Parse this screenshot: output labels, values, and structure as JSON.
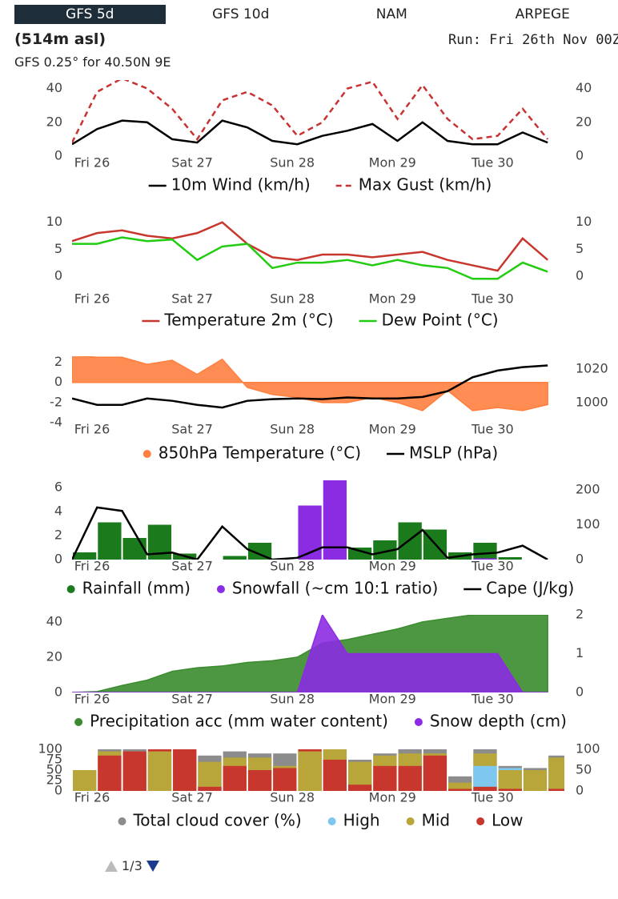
{
  "tabs": [
    "GFS 5d",
    "GFS 10d",
    "NAM",
    "ARPEGE"
  ],
  "selected_tab": 0,
  "header": {
    "elevation": "(514m asl)",
    "run": "Run: Fri 26th Nov 00Z",
    "model": "GFS 0.25° for 40.50N 9E"
  },
  "pager": {
    "label": "1/3"
  },
  "chart_data": [
    {
      "type": "line",
      "x": [
        0,
        6,
        12,
        18,
        24,
        30,
        36,
        42,
        48,
        54,
        60,
        66,
        72,
        78,
        84,
        90,
        96,
        102,
        108,
        114
      ],
      "xlim": [
        0,
        118
      ],
      "xticks": [
        {
          "value": 0,
          "label": "Fri 26"
        },
        {
          "value": 24,
          "label": "Sat 27"
        },
        {
          "value": 48,
          "label": "Sun 28"
        },
        {
          "value": 72,
          "label": "Mon 29"
        },
        {
          "value": 96,
          "label": "Tue 30"
        }
      ],
      "ylim": [
        0,
        45
      ],
      "yticks": [
        0,
        20,
        40
      ],
      "y2lim": [
        0,
        45
      ],
      "y2ticks": [
        0,
        20,
        40
      ],
      "series": [
        {
          "name": "10m Wind (km/h)",
          "color": "#000000",
          "values": [
            7,
            16,
            21,
            20,
            10,
            8,
            21,
            17,
            9,
            7,
            12,
            15,
            19,
            9,
            20,
            9,
            7,
            7,
            14,
            8
          ]
        },
        {
          "name": "Max Gust (km/h)",
          "color": "#c83232",
          "dashed": true,
          "values": [
            8,
            38,
            46,
            40,
            28,
            10,
            33,
            38,
            30,
            12,
            20,
            40,
            44,
            22,
            42,
            22,
            10,
            12,
            28,
            10
          ]
        }
      ]
    },
    {
      "type": "line",
      "x": [
        0,
        6,
        12,
        18,
        24,
        30,
        36,
        42,
        48,
        54,
        60,
        66,
        72,
        78,
        84,
        90,
        96,
        102,
        108,
        114
      ],
      "xlim": [
        0,
        118
      ],
      "xticks": [
        {
          "value": 0,
          "label": "Fri 26"
        },
        {
          "value": 24,
          "label": "Sat 27"
        },
        {
          "value": 48,
          "label": "Sun 28"
        },
        {
          "value": 72,
          "label": "Mon 29"
        },
        {
          "value": 96,
          "label": "Tue 30"
        }
      ],
      "ylim": [
        -3,
        11
      ],
      "yticks": [
        0,
        5,
        10
      ],
      "y2lim": [
        -3,
        11
      ],
      "y2ticks": [
        0,
        5,
        10
      ],
      "series": [
        {
          "name": "Temperature 2m (°C)",
          "color": "#c8372d",
          "values": [
            6.5,
            8,
            8.5,
            7.5,
            7,
            8,
            10,
            6,
            3.5,
            3,
            4,
            4,
            3.5,
            4,
            4.5,
            3,
            2,
            1,
            7,
            3
          ]
        },
        {
          "name": "Dew Point (°C)",
          "color": "#22cc11",
          "values": [
            6,
            6,
            7.2,
            6.5,
            6.8,
            3,
            5.5,
            6,
            1.5,
            2.5,
            2.5,
            3,
            2,
            3,
            2,
            1.5,
            -0.5,
            -0.5,
            2.5,
            0.8
          ]
        }
      ]
    },
    {
      "type": "combo",
      "x": [
        0,
        6,
        12,
        18,
        24,
        30,
        36,
        42,
        48,
        54,
        60,
        66,
        72,
        78,
        84,
        90,
        96,
        102,
        108,
        114
      ],
      "xlim": [
        0,
        118
      ],
      "xticks": [
        {
          "value": 0,
          "label": "Fri 26"
        },
        {
          "value": 24,
          "label": "Sat 27"
        },
        {
          "value": 48,
          "label": "Sun 28"
        },
        {
          "value": 72,
          "label": "Mon 29"
        },
        {
          "value": 96,
          "label": "Tue 30"
        }
      ],
      "ylim": [
        -4,
        2.6
      ],
      "yticks": [
        -4,
        -2,
        0,
        2
      ],
      "y2lim": [
        988,
        1027.5
      ],
      "y2ticks": [
        1000,
        1020
      ],
      "series": [
        {
          "name": "850hPa Temperature (°C)",
          "type": "area",
          "color": "#ff7f3f",
          "values": [
            2.7,
            2.5,
            2.5,
            1.8,
            2.2,
            0.8,
            2.3,
            -0.5,
            -1.2,
            -1.5,
            -2,
            -2,
            -1.5,
            -2,
            -2.8,
            -0.8,
            -2.8,
            -2.5,
            -2.8,
            -2.2
          ]
        },
        {
          "name": "MSLP (hPa)",
          "type": "line",
          "axis": "y2",
          "color": "#000000",
          "values": [
            1002.4,
            998.6,
            998.6,
            1002.4,
            1001,
            998.6,
            997,
            1001,
            1002,
            1002.4,
            1002,
            1003,
            1002.4,
            1002.4,
            1003.3,
            1006.7,
            1015,
            1019,
            1021,
            1022
          ]
        }
      ]
    },
    {
      "type": "combo",
      "x": [
        0,
        6,
        12,
        18,
        24,
        30,
        36,
        42,
        48,
        54,
        60,
        66,
        72,
        78,
        84,
        90,
        96,
        102,
        108,
        114
      ],
      "xlim": [
        0,
        118
      ],
      "xticks": [
        {
          "value": 0,
          "label": "Fri 26"
        },
        {
          "value": 24,
          "label": "Sat 27"
        },
        {
          "value": 48,
          "label": "Sun 28"
        },
        {
          "value": 72,
          "label": "Mon 29"
        },
        {
          "value": 96,
          "label": "Tue 30"
        }
      ],
      "ylim": [
        0,
        6.6
      ],
      "yticks": [
        0,
        2,
        4,
        6
      ],
      "y2lim": [
        0,
        228
      ],
      "y2ticks": [
        0,
        100,
        200
      ],
      "series": [
        {
          "name": "Rainfall (mm)",
          "type": "bar",
          "color": "#1b7a1b",
          "values": [
            0.6,
            3.1,
            1.8,
            2.9,
            0.5,
            0,
            0.3,
            1.4,
            0,
            0,
            0,
            1,
            1.6,
            3.1,
            2.5,
            0.6,
            1.4,
            0.2,
            0,
            0
          ]
        },
        {
          "name": "Snowfall (~cm 10:1 ratio)",
          "type": "bar",
          "color": "#8b2be2",
          "values": [
            0,
            0,
            0,
            0,
            0,
            0,
            0,
            0,
            0,
            4.5,
            6.8,
            0,
            0,
            0,
            0,
            0,
            0.1,
            0,
            0,
            0
          ]
        },
        {
          "name": "Cape (J/kg)",
          "type": "line",
          "axis": "y2",
          "color": "#000000",
          "values": [
            0,
            150,
            140,
            15,
            20,
            0,
            95,
            30,
            0,
            5,
            35,
            35,
            15,
            30,
            85,
            5,
            15,
            20,
            40,
            0
          ]
        }
      ]
    },
    {
      "type": "combo",
      "x": [
        0,
        6,
        12,
        18,
        24,
        30,
        36,
        42,
        48,
        54,
        60,
        66,
        72,
        78,
        84,
        90,
        96,
        102,
        108,
        114
      ],
      "xlim": [
        0,
        118
      ],
      "xticks": [
        {
          "value": 0,
          "label": "Fri 26"
        },
        {
          "value": 24,
          "label": "Sat 27"
        },
        {
          "value": 48,
          "label": "Sun 28"
        },
        {
          "value": 72,
          "label": "Mon 29"
        },
        {
          "value": 96,
          "label": "Tue 30"
        }
      ],
      "ylim": [
        0,
        44
      ],
      "yticks": [
        0,
        20,
        40
      ],
      "y2lim": [
        0,
        2
      ],
      "y2ticks": [
        0,
        1,
        2
      ],
      "series": [
        {
          "name": "Precipitation acc (mm water content)",
          "type": "area",
          "color": "#3b8c2e",
          "values": [
            0,
            0.5,
            4,
            7,
            12,
            14,
            15,
            17,
            18,
            20,
            28,
            30,
            33,
            36,
            40,
            42,
            44,
            44,
            44,
            44
          ]
        },
        {
          "name": "Snow depth (cm)",
          "type": "area",
          "axis": "y2",
          "color": "#8b2be2",
          "values": [
            0,
            0,
            0,
            0,
            0,
            0,
            0,
            0,
            0,
            0,
            2,
            1,
            1,
            1,
            1,
            1,
            1,
            1,
            0,
            0
          ]
        }
      ]
    },
    {
      "type": "bar",
      "x": [
        0,
        6,
        12,
        18,
        24,
        30,
        36,
        42,
        48,
        54,
        60,
        66,
        72,
        78,
        84,
        90,
        96,
        102,
        108,
        114
      ],
      "xlim": [
        0,
        118
      ],
      "xticks": [
        {
          "value": 0,
          "label": "Fri 26"
        },
        {
          "value": 24,
          "label": "Sat 27"
        },
        {
          "value": 48,
          "label": "Sun 28"
        },
        {
          "value": 72,
          "label": "Mon 29"
        },
        {
          "value": 96,
          "label": "Tue 30"
        }
      ],
      "ylim": [
        0,
        100
      ],
      "yticks": [
        0,
        25,
        50,
        75,
        100
      ],
      "y2lim": [
        0,
        100
      ],
      "y2ticks": [
        0,
        50,
        100
      ],
      "series": [
        {
          "name": "Total cloud cover (%)",
          "color": "#8c8c8c",
          "values": [
            50,
            100,
            100,
            100,
            100,
            85,
            95,
            90,
            90,
            100,
            100,
            75,
            90,
            100,
            100,
            35,
            100,
            60,
            55,
            85
          ]
        },
        {
          "name": "High",
          "color": "#7ec8f0",
          "values": [
            0,
            0,
            0,
            0,
            0,
            0,
            0,
            0,
            0,
            0,
            0,
            0,
            0,
            0,
            0,
            0,
            60,
            55,
            0,
            0
          ]
        },
        {
          "name": "Mid",
          "color": "#b8a63a",
          "values": [
            50,
            95,
            95,
            95,
            100,
            70,
            80,
            80,
            60,
            95,
            100,
            70,
            85,
            90,
            90,
            20,
            90,
            50,
            50,
            80
          ]
        },
        {
          "name": "Low",
          "color": "#c8372d",
          "values": [
            0,
            85,
            95,
            100,
            100,
            10,
            60,
            50,
            55,
            100,
            75,
            15,
            60,
            60,
            85,
            5,
            10,
            5,
            0,
            5
          ]
        }
      ]
    }
  ]
}
